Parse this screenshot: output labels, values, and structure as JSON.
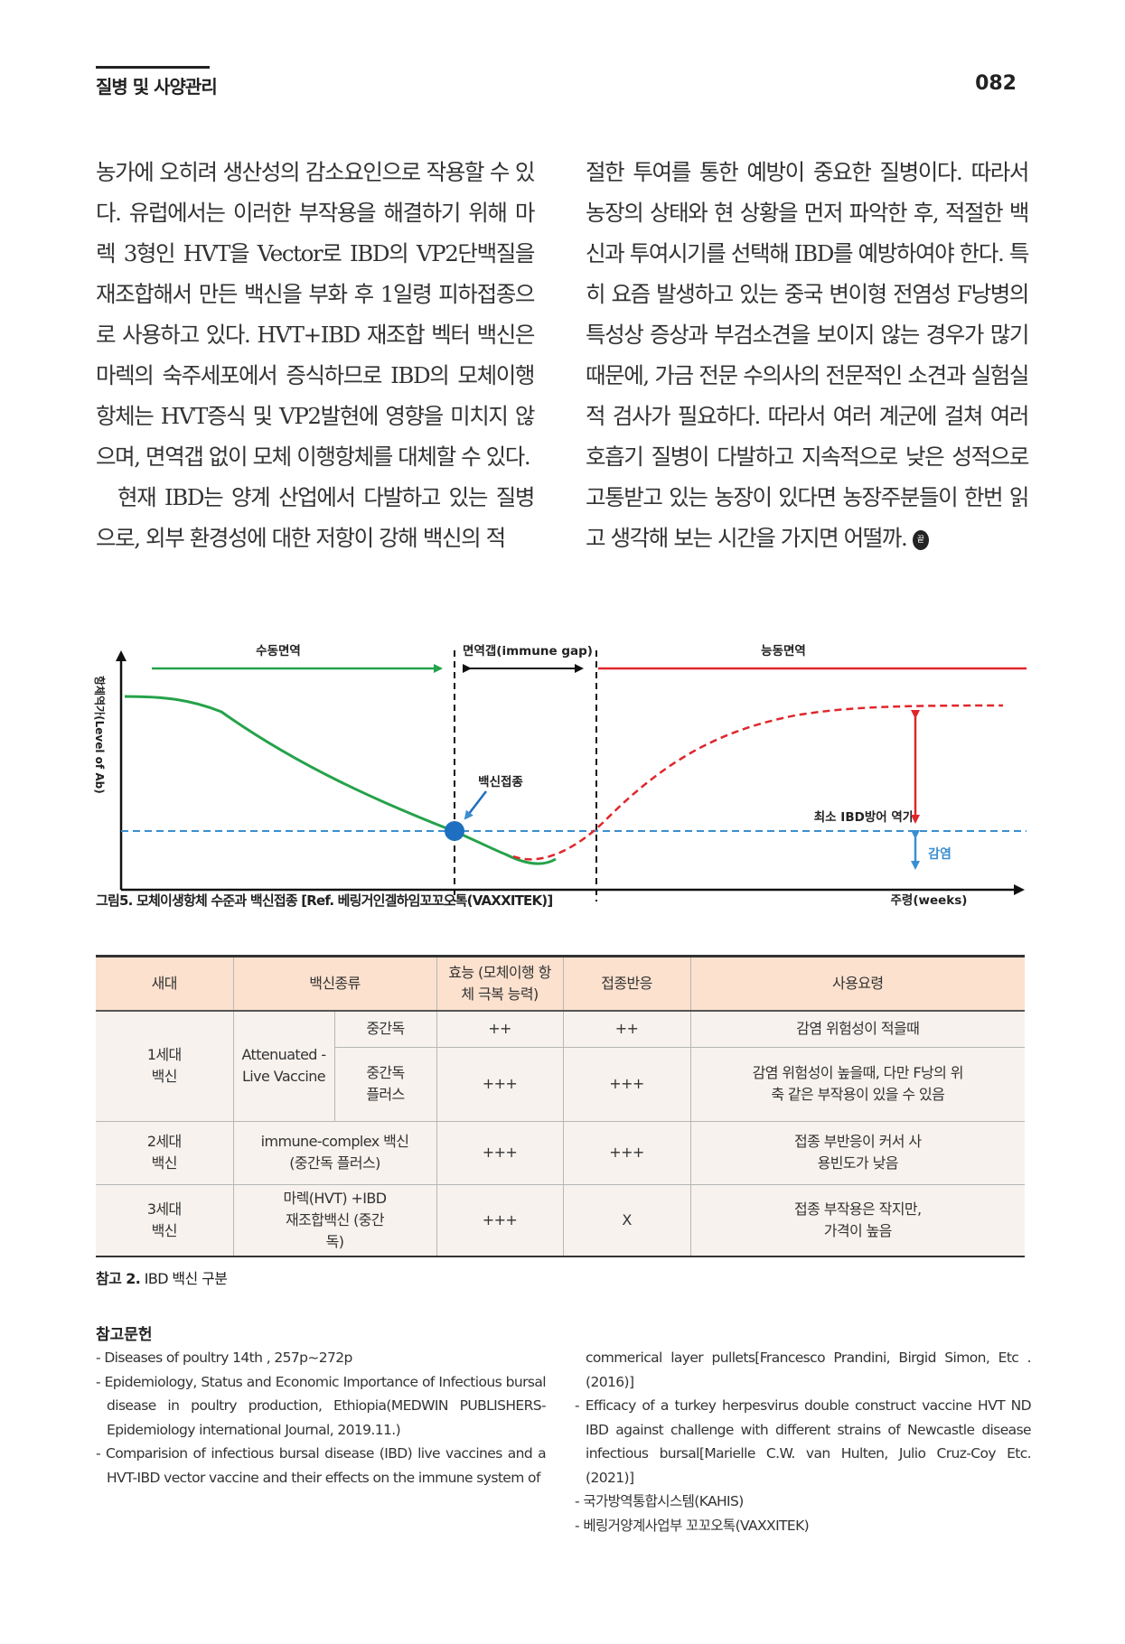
{
  "header": {
    "section_title": "질병 및 사양관리",
    "page_number": "082"
  },
  "body": {
    "left_col": [
      {
        "text": "농가에 오히려 생산성의 감소요인으로 작용할 수 있다. 유럽에서는 이러한 부작용을 해결하기 위해 마렉 3형인 HVT을 Vector로 IBD의 VP2단백질을 재조합해서 만든 백신을 부화 후 1일령 피하접종으로 사용하고 있다. HVT+IBD 재조합 벡터 백신은 마렉의 숙주세포에서 증식하므로 IBD의 모체이행항체는 HVT증식 및 VP2발현에 영향을 미치지 않으며, 면역갭 없이 모체 이행항체를 대체할 수 있다.",
        "indent": false
      },
      {
        "text": "현재 IBD는 양계 산업에서 다발하고 있는 질병으로, 외부 환경성에 대한 저항이 강해 백신의 적",
        "indent": true
      }
    ],
    "right_col": "절한 투여를 통한 예방이 중요한 질병이다. 따라서 농장의 상태와 현 상황을 먼저 파악한 후, 적절한 백신과 투여시기를 선택해 IBD를 예방하여야 한다. 특히 요즘 발생하고 있는 중국 변이형 전염성 F낭병의 특성상 증상과 부검소견을 보이지 않는 경우가 많기 때문에, 가금 전문 수의사의 전문적인 소견과 실험실적 검사가 필요하다. 따라서 여러 계군에 걸쳐 여러 호흡기 질병이 다발하고 지속적으로 낮은 성적으로 고통받고 있는 농장이 있다면 농장주분들이 한번 읽고 생각해 보는 시간을 가지면 어떨까.",
    "end_mark": "끝"
  },
  "figure": {
    "label_passive": "수동면역",
    "label_gap": "면역갭(immune gap)",
    "label_active": "능동면역",
    "ylabel": "항체역가(Level of Ab)",
    "xlabel": "주령(weeks)",
    "label_vaccination": "백신접종",
    "label_min_titer": "최소 IBD방어 역가",
    "label_infection": "감염",
    "colors": {
      "passive": "#25a24a",
      "active": "#e0262b",
      "threshold": "#3a8fd0",
      "vaccine_dot": "#1f6fc0"
    },
    "caption_label": "그림5.",
    "caption_text": " 모체이생항체 수준과 백신접종 [Ref. 베링거인겔하임꼬꼬오톡(VAXXITEK)]"
  },
  "table": {
    "headers": [
      "새대",
      "백신종류",
      "효능 (모체이행 항체 극복 능력)",
      "접종반응",
      "사용요령"
    ],
    "gen1": "1세대 백신",
    "gen1_type": "Attenuated - Live Vaccine",
    "r1": {
      "sub": "중간독",
      "efficacy": "++",
      "reaction": "++",
      "usage": "감염 위험성이 적을때"
    },
    "r2": {
      "sub": "중간독 플러스",
      "efficacy": "+++",
      "reaction": "+++",
      "usage": "감염 위험성이 높을때, 다만 F낭의 위축 같은 부작용이 있을 수 있음"
    },
    "r3": {
      "gen": "2세대 백신",
      "type": "immune-complex 백신 (중간독 플러스)",
      "efficacy": "+++",
      "reaction": "+++",
      "usage": "접종 부반응이 커서 사용빈도가 낮음"
    },
    "r4": {
      "gen": "3세대 백신",
      "type": "마렉(HVT) +IBD재조합백신 (중간독)",
      "efficacy": "+++",
      "reaction": "X",
      "usage": "접종 부작용은 작지만, 가격이 높음"
    },
    "caption_label": "참고 2.",
    "caption_text": " IBD 백신 구분"
  },
  "references": {
    "title": "참고문헌",
    "left": [
      {
        "text": "- Diseases of poultry 14th , 257p~272p",
        "cont": false
      },
      {
        "text": "- Epidemiology, Status and Economic Importance of Infectious bursal disease in poultry production, Ethiopia(MEDWIN PUBLISHERS-Epidemiology international Journal, 2019.11.)",
        "cont": false
      },
      {
        "text": "- Comparision of infectious bursal disease (IBD) live vaccines and a HVT-IBD vector vaccine and their effects on the immune system of",
        "cont": false
      }
    ],
    "right": [
      {
        "text": "commerical layer pullets[Francesco Prandini, Birgid Simon, Etc .(2016)]",
        "cont": true
      },
      {
        "text": "- Efficacy of a turkey herpesvirus double construct vaccine HVT ND IBD against challenge with different strains of Newcastle disease infectious bursal[Marielle C.W. van Hulten, Julio Cruz-Coy Etc. (2021)]",
        "cont": false
      },
      {
        "text": "- 국가방역통합시스템(KAHIS)",
        "cont": false
      },
      {
        "text": "- 베링거양계사업부 꼬꼬오톡(VAXXITEK)",
        "cont": false
      }
    ]
  }
}
